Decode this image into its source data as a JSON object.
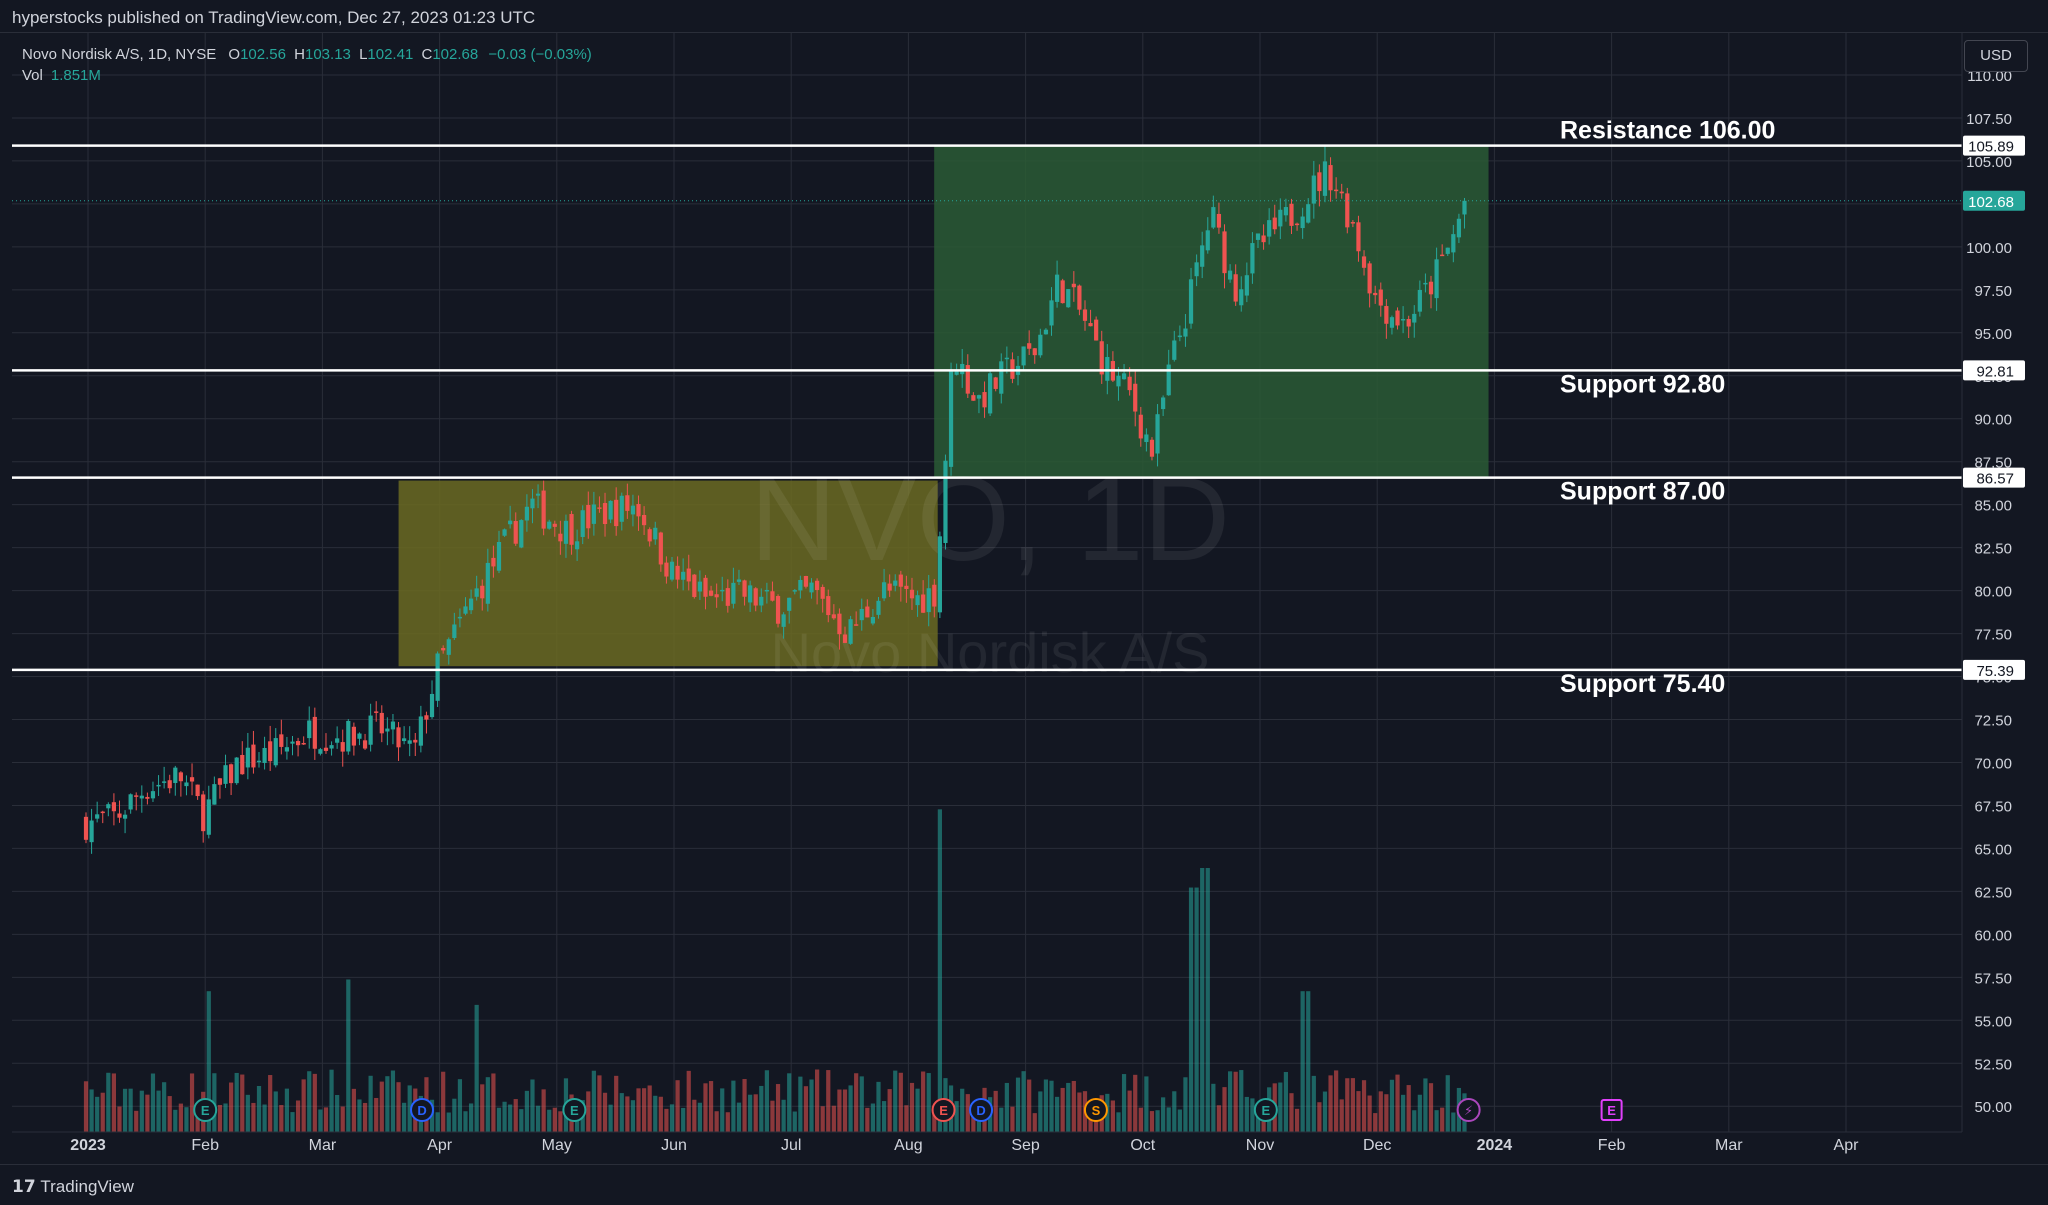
{
  "header": {
    "published": "hyperstocks published on TradingView.com, Dec 27, 2023 01:23 UTC"
  },
  "legend": {
    "symbol": "Novo Nordisk A/S, 1D, NYSE",
    "open_label": "O",
    "open": "102.56",
    "high_label": "H",
    "high": "103.13",
    "low_label": "L",
    "low": "102.41",
    "close_label": "C",
    "close": "102.68",
    "change": "−0.03 (−0.03%)",
    "vol_label": "Vol",
    "vol": "1.851M"
  },
  "currency_button": "USD",
  "watermark": {
    "ticker": "NVO, 1D",
    "name": "Novo Nordisk A/S"
  },
  "footer": {
    "brand": "TradingView"
  },
  "colors": {
    "background": "#131722",
    "grid": "#2a2e39",
    "up": "#26a69a",
    "down": "#ef5350",
    "green_zone": "#2a5a35",
    "yellow_zone": "#6b6a22",
    "level_line": "#ffffff"
  },
  "chart_data": {
    "type": "candlestick",
    "symbol": "NVO",
    "interval": "1D",
    "yaxis": {
      "ylim": [
        48.5,
        112.5
      ],
      "ticks": [
        "110.00",
        "107.50",
        "105.00",
        "102.50",
        "100.00",
        "97.50",
        "95.00",
        "92.50",
        "90.00",
        "87.50",
        "85.00",
        "82.50",
        "80.00",
        "77.50",
        "75.00",
        "72.50",
        "70.00",
        "67.50",
        "65.00",
        "62.50",
        "60.00",
        "57.50",
        "55.00",
        "52.50",
        "50.00"
      ]
    },
    "xaxis": {
      "labels": [
        "2023",
        "Feb",
        "Mar",
        "Apr",
        "May",
        "Jun",
        "Jul",
        "Aug",
        "Sep",
        "Oct",
        "Nov",
        "Dec",
        "2024",
        "Feb",
        "Mar",
        "Apr"
      ],
      "label_months": [
        0,
        1,
        2,
        3,
        4,
        5,
        6,
        7,
        8,
        9,
        10,
        11,
        12,
        13,
        14,
        15
      ],
      "bold": [
        "2023",
        "2024"
      ]
    },
    "horizontal_levels": [
      {
        "price": 105.89,
        "tag": "105.89",
        "annotation": "Resistance 106.00"
      },
      {
        "price": 92.81,
        "tag": "92.81",
        "annotation": "Support 92.80"
      },
      {
        "price": 86.57,
        "tag": "86.57",
        "annotation": "Support 87.00"
      },
      {
        "price": 75.39,
        "tag": "75.39",
        "annotation": "Support 75.40"
      }
    ],
    "last_price": {
      "price": 102.68,
      "tag": "102.68"
    },
    "zones": [
      {
        "color": "yellow",
        "month_from": 2.65,
        "month_to": 7.25,
        "price_from": 75.6,
        "price_to": 86.4
      },
      {
        "color": "green",
        "month_from": 7.22,
        "month_to": 11.95,
        "price_from": 86.6,
        "price_to": 105.9
      }
    ],
    "events": [
      {
        "letter": "E",
        "kind": "earnings",
        "month": 1.0
      },
      {
        "letter": "D",
        "kind": "dividend",
        "month": 2.85
      },
      {
        "letter": "E",
        "kind": "earnings",
        "month": 4.15
      },
      {
        "letter": "E",
        "kind": "earnings",
        "month": 7.3
      },
      {
        "letter": "D",
        "kind": "dividend",
        "month": 7.62
      },
      {
        "letter": "S",
        "kind": "split",
        "month": 8.6
      },
      {
        "letter": "E",
        "kind": "earnings",
        "month": 10.05
      },
      {
        "letter": "⚡",
        "kind": "news",
        "month": 11.78
      },
      {
        "letter": "E",
        "kind": "earnings-upcoming",
        "month": 13.0
      }
    ],
    "price_path": {
      "month_points": [
        0,
        0.25,
        0.5,
        0.8,
        1.0,
        1.3,
        1.6,
        1.9,
        2.2,
        2.5,
        2.8,
        3.0,
        3.3,
        3.6,
        3.8,
        4.1,
        4.4,
        4.7,
        5.0,
        5.3,
        5.6,
        5.9,
        6.2,
        6.5,
        6.8,
        7.1,
        7.25,
        7.4,
        7.6,
        7.9,
        8.1,
        8.3,
        8.5,
        8.7,
        8.9,
        9.1,
        9.25,
        9.4,
        9.6,
        9.8,
        10.0,
        10.3,
        10.6,
        10.8,
        11.0,
        11.25,
        11.45,
        11.6,
        11.78
      ],
      "closes": [
        66.5,
        66.8,
        68.5,
        69.2,
        67.0,
        70.0,
        70.5,
        71.8,
        71.5,
        72.0,
        70.5,
        75.5,
        79.5,
        83.0,
        85.0,
        83.5,
        84.5,
        85.0,
        81.0,
        79.5,
        79.8,
        79.0,
        80.0,
        77.5,
        80.0,
        79.5,
        80.0,
        94.0,
        91.0,
        93.0,
        94.0,
        98.0,
        96.0,
        93.0,
        91.5,
        88.0,
        93.0,
        96.5,
        102.0,
        97.5,
        100.0,
        102.0,
        104.5,
        101.5,
        97.0,
        95.5,
        97.5,
        99.5,
        102.68
      ]
    },
    "volume_path": {
      "base_millions": 1.6,
      "spikes": [
        {
          "month": 1.05,
          "millions": 7.2
        },
        {
          "month": 2.23,
          "millions": 7.8
        },
        {
          "month": 3.35,
          "millions": 6.5
        },
        {
          "month": 7.28,
          "millions": 16.5
        },
        {
          "month": 9.45,
          "millions": 12.5
        },
        {
          "month": 9.55,
          "millions": 13.5
        },
        {
          "month": 10.4,
          "millions": 7.2
        }
      ]
    },
    "volume_scale_max_millions": 18
  }
}
